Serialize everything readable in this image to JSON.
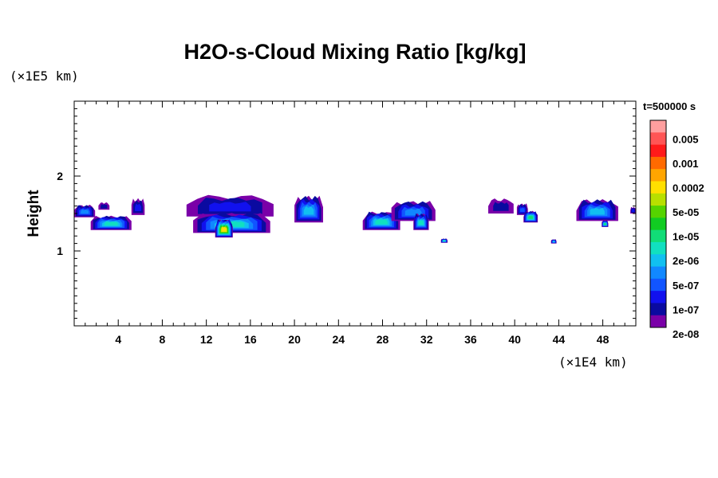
{
  "chart_data": {
    "type": "heatmap",
    "title": "H2O-s-Cloud Mixing Ratio [kg/kg]",
    "ylabel": "Height",
    "xlabel": "",
    "x_unit": "(×1E4 km)",
    "y_unit": "(×1E5 km)",
    "time_label": "t=500000 s",
    "xlim": [
      0,
      51
    ],
    "ylim": [
      0,
      3
    ],
    "x_ticks": [
      4,
      8,
      12,
      16,
      20,
      24,
      28,
      32,
      36,
      40,
      44,
      48
    ],
    "y_ticks": [
      1,
      2
    ],
    "colorbar": {
      "labels": [
        "0.005",
        "0.001",
        "0.0002",
        "5e-05",
        "1e-05",
        "2e-06",
        "5e-07",
        "1e-07",
        "2e-08"
      ],
      "colors": [
        "#ff9f9f",
        "#ff5555",
        "#ff1a1a",
        "#ff6a00",
        "#ffa500",
        "#ffe000",
        "#b8e000",
        "#55d400",
        "#11cc22",
        "#11dd77",
        "#11e0c0",
        "#11c0f0",
        "#1188ff",
        "#1155ff",
        "#1111ee",
        "#0a0aa0",
        "#7a00a8"
      ]
    },
    "clouds": [
      {
        "x0": 0.0,
        "x1": 1.9,
        "ytop": 1.6,
        "ybot": 1.45,
        "peak": 5
      },
      {
        "x0": 1.5,
        "x1": 5.2,
        "ytop": 1.45,
        "ybot": 1.28,
        "peak": 7
      },
      {
        "x0": 2.2,
        "x1": 3.2,
        "ytop": 1.64,
        "ybot": 1.55,
        "peak": 2
      },
      {
        "x0": 5.2,
        "x1": 6.4,
        "ytop": 1.68,
        "ybot": 1.48,
        "peak": 3
      },
      {
        "x0": 10.2,
        "x1": 18.1,
        "ytop": 1.72,
        "ybot": 1.46,
        "peak": 3
      },
      {
        "x0": 10.8,
        "x1": 17.8,
        "ytop": 1.48,
        "ybot": 1.24,
        "peak": 7
      },
      {
        "x0": 12.8,
        "x1": 14.4,
        "ytop": 1.4,
        "ybot": 1.18,
        "peak": 12
      },
      {
        "x0": 20.0,
        "x1": 22.6,
        "ytop": 1.7,
        "ybot": 1.38,
        "peak": 6
      },
      {
        "x0": 26.2,
        "x1": 29.6,
        "ytop": 1.5,
        "ybot": 1.28,
        "peak": 7
      },
      {
        "x0": 28.8,
        "x1": 32.8,
        "ytop": 1.64,
        "ybot": 1.4,
        "peak": 5
      },
      {
        "x0": 30.8,
        "x1": 32.2,
        "ytop": 1.48,
        "ybot": 1.28,
        "peak": 7
      },
      {
        "x0": 33.3,
        "x1": 33.9,
        "ytop": 1.16,
        "ybot": 1.11,
        "peak": 7
      },
      {
        "x0": 37.6,
        "x1": 39.9,
        "ytop": 1.68,
        "ybot": 1.5,
        "peak": 2
      },
      {
        "x0": 40.2,
        "x1": 41.2,
        "ytop": 1.62,
        "ybot": 1.48,
        "peak": 4
      },
      {
        "x0": 40.8,
        "x1": 42.1,
        "ytop": 1.52,
        "ybot": 1.38,
        "peak": 8
      },
      {
        "x0": 43.3,
        "x1": 43.8,
        "ytop": 1.15,
        "ybot": 1.1,
        "peak": 6
      },
      {
        "x0": 45.6,
        "x1": 49.4,
        "ytop": 1.66,
        "ybot": 1.4,
        "peak": 6
      },
      {
        "x0": 47.9,
        "x1": 48.5,
        "ytop": 1.4,
        "ybot": 1.32,
        "peak": 8
      },
      {
        "x0": 50.5,
        "x1": 51.0,
        "ytop": 1.58,
        "ybot": 1.5,
        "peak": 3
      }
    ]
  }
}
